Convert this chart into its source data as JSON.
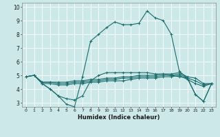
{
  "xlabel": "Humidex (Indice chaleur)",
  "xlim": [
    -0.5,
    23.5
  ],
  "ylim": [
    2.7,
    10.3
  ],
  "xticks": [
    0,
    1,
    2,
    3,
    4,
    5,
    6,
    7,
    8,
    9,
    10,
    11,
    12,
    13,
    14,
    15,
    16,
    17,
    18,
    19,
    20,
    21,
    22,
    23
  ],
  "yticks": [
    3,
    4,
    5,
    6,
    7,
    8,
    9,
    10
  ],
  "bg_color": "#cce8e8",
  "plot_bg": "#cce8e8",
  "grid_color": "#ffffff",
  "line_color": "#1a6b6b",
  "lines": [
    {
      "x": [
        0,
        1,
        2,
        3,
        4,
        5,
        6,
        7,
        8,
        9,
        10,
        11,
        12,
        13,
        14,
        15,
        16,
        17,
        18,
        19,
        20,
        21,
        22,
        23
      ],
      "y": [
        4.9,
        5.0,
        4.4,
        4.0,
        3.5,
        2.9,
        2.7,
        4.9,
        7.5,
        8.0,
        8.5,
        8.9,
        8.7,
        8.7,
        8.8,
        9.7,
        9.2,
        9.0,
        8.0,
        5.3,
        4.8,
        3.6,
        3.1,
        4.4
      ]
    },
    {
      "x": [
        0,
        1,
        2,
        3,
        4,
        5,
        6,
        7,
        8,
        9,
        10,
        11,
        12,
        13,
        14,
        15,
        16,
        17,
        18,
        19,
        20,
        21,
        22,
        23
      ],
      "y": [
        4.9,
        5.0,
        4.5,
        4.5,
        4.5,
        4.5,
        4.6,
        4.6,
        4.7,
        4.7,
        4.8,
        4.8,
        4.9,
        4.9,
        5.0,
        5.0,
        5.0,
        5.1,
        5.1,
        5.2,
        4.9,
        4.8,
        4.4,
        4.4
      ]
    },
    {
      "x": [
        0,
        1,
        2,
        3,
        4,
        5,
        6,
        7,
        8,
        9,
        10,
        11,
        12,
        13,
        14,
        15,
        16,
        17,
        18,
        19,
        20,
        21,
        22,
        23
      ],
      "y": [
        4.9,
        5.0,
        4.5,
        4.5,
        4.4,
        4.4,
        4.5,
        4.5,
        4.6,
        4.6,
        4.7,
        4.7,
        4.8,
        4.8,
        4.9,
        4.9,
        4.9,
        5.0,
        5.0,
        5.1,
        4.8,
        4.6,
        4.3,
        4.4
      ]
    },
    {
      "x": [
        0,
        1,
        2,
        3,
        4,
        5,
        6,
        7,
        8,
        9,
        10,
        11,
        12,
        13,
        14,
        15,
        16,
        17,
        18,
        19,
        20,
        21,
        22,
        23
      ],
      "y": [
        4.9,
        5.0,
        4.4,
        4.4,
        4.3,
        4.3,
        4.4,
        4.4,
        4.5,
        4.5,
        4.6,
        4.6,
        4.6,
        4.7,
        4.8,
        4.8,
        4.8,
        4.9,
        4.9,
        5.0,
        4.7,
        4.4,
        4.2,
        4.4
      ]
    },
    {
      "x": [
        2,
        3,
        4,
        5,
        6,
        7,
        8,
        9,
        10,
        11,
        12,
        13,
        14,
        15,
        16,
        17,
        18,
        19,
        20,
        21,
        22,
        23
      ],
      "y": [
        4.4,
        4.0,
        3.5,
        3.3,
        3.2,
        3.5,
        4.6,
        5.0,
        5.2,
        5.2,
        5.2,
        5.2,
        5.2,
        5.2,
        5.1,
        5.1,
        5.0,
        4.9,
        4.8,
        3.6,
        3.1,
        4.4
      ]
    }
  ]
}
